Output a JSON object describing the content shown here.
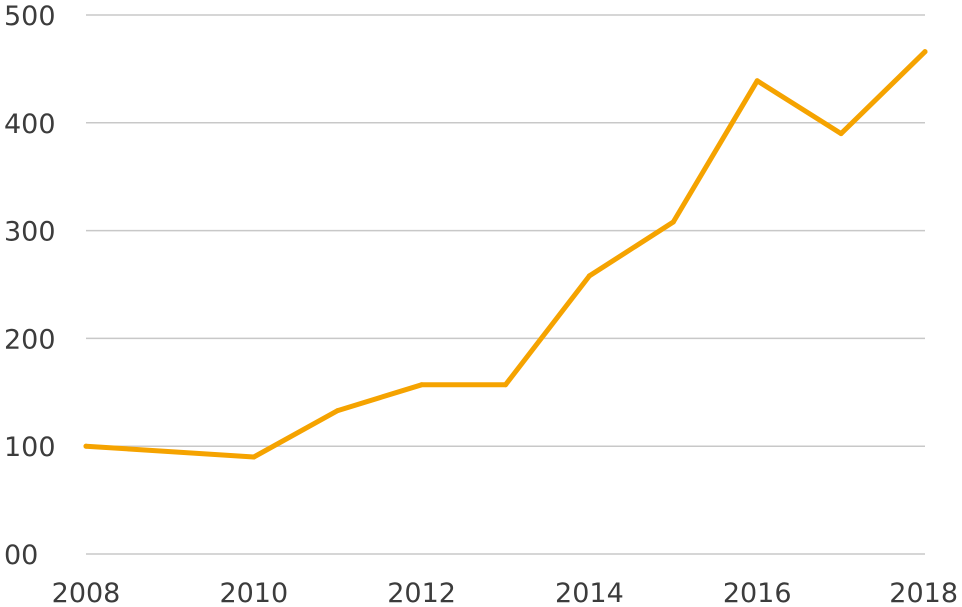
{
  "chart_data": {
    "type": "line",
    "title": "",
    "xlabel": "",
    "ylabel": "",
    "x": [
      2008,
      2010,
      2011,
      2012,
      2013,
      2014,
      2015,
      2016,
      2017,
      2018
    ],
    "series": [
      {
        "values": [
          100,
          90,
          133,
          157,
          157,
          258,
          308,
          439,
          390,
          466
        ],
        "color": "#f5a300"
      }
    ],
    "xlim": [
      2008,
      2018
    ],
    "ylim": [
      0,
      500
    ],
    "x_ticks": [
      2008,
      2010,
      2012,
      2014,
      2016,
      2018
    ],
    "x_tick_labels": [
      "2008",
      "2010",
      "2012",
      "2014",
      "2016",
      "2018"
    ],
    "y_ticks": [
      0,
      100,
      200,
      300,
      400,
      500
    ],
    "y_tick_labels": [
      "00",
      "100",
      "200",
      "300",
      "400",
      "500"
    ],
    "grid": true,
    "colors": {
      "grid": "#c8c8c8",
      "text": "#3c3c3c"
    }
  }
}
